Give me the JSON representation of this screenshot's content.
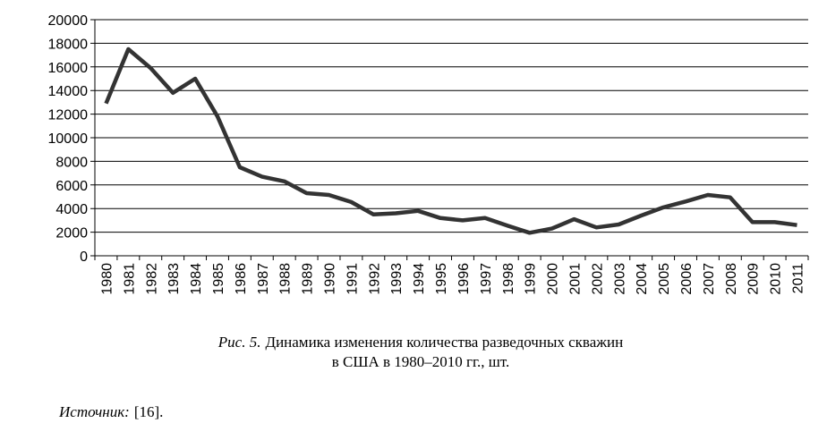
{
  "chart_data": {
    "type": "line",
    "categories": [
      "1980",
      "1981",
      "1982",
      "1983",
      "1984",
      "1985",
      "1986",
      "1987",
      "1988",
      "1989",
      "1990",
      "1991",
      "1992",
      "1993",
      "1994",
      "1995",
      "1996",
      "1997",
      "1998",
      "1999",
      "2000",
      "2001",
      "2002",
      "2003",
      "2004",
      "2005",
      "2006",
      "2007",
      "2008",
      "2009",
      "2010",
      "2011"
    ],
    "values": [
      12900,
      17500,
      15900,
      13800,
      15000,
      11800,
      7500,
      6700,
      6300,
      5300,
      5150,
      4550,
      3500,
      3600,
      3800,
      3200,
      3000,
      3200,
      2550,
      1950,
      2300,
      3100,
      2400,
      2650,
      3400,
      4100,
      4600,
      5150,
      4950,
      2850,
      2850,
      2600
    ],
    "color": "#333333",
    "ylim": [
      0,
      20000
    ],
    "yticks": [
      0,
      2000,
      4000,
      6000,
      8000,
      10000,
      12000,
      14000,
      16000,
      18000,
      20000
    ],
    "grid": true
  },
  "caption": {
    "label": "Рис. 5.",
    "lines": [
      "Динамика изменения количества разведочных скважин",
      "в США в 1980–2010 гг., шт."
    ]
  },
  "source": {
    "label": "Источник:",
    "text": "[16]."
  }
}
